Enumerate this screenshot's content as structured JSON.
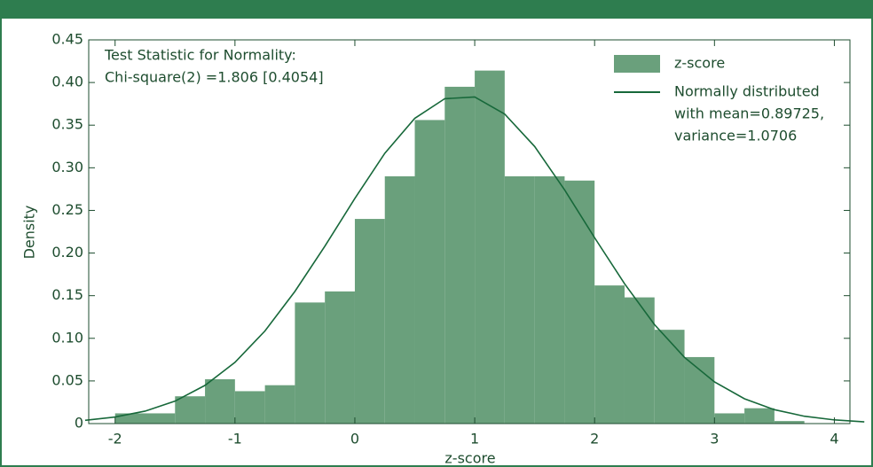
{
  "chart_data": {
    "type": "histogram",
    "annotation": [
      "Test Statistic for Normality:",
      "Chi-square(2) =1.806 [0.4054]"
    ],
    "xlabel": "z-score",
    "ylabel": "Density",
    "xlim": [
      -2.22,
      4.13
    ],
    "ylim": [
      0,
      0.45
    ],
    "xticks": [
      -2,
      -1,
      0,
      1,
      2,
      3,
      4
    ],
    "yticks": [
      0,
      {
        "value": 0.05,
        "label": "0.05"
      },
      {
        "value": 0.1,
        "label": "0.10"
      },
      {
        "value": 0.15,
        "label": "0.15"
      },
      {
        "value": 0.2,
        "label": "0.20"
      },
      {
        "value": 0.25,
        "label": "0.25"
      },
      {
        "value": 0.3,
        "label": "0.30"
      },
      {
        "value": 0.35,
        "label": "0.35"
      },
      {
        "value": 0.4,
        "label": "0.40"
      },
      {
        "value": 0.45,
        "label": "0.45"
      }
    ],
    "bins": [
      -2,
      -1.75,
      -1.5,
      -1.25,
      -1,
      -0.75,
      -0.5,
      -0.25,
      0,
      0.25,
      0.5,
      0.75,
      1,
      1.25,
      1.5,
      1.75,
      2,
      2.25,
      2.5,
      2.75,
      3,
      3.25,
      3.5,
      3.75
    ],
    "series": [
      {
        "name": "z-score",
        "color": "#6aa07c",
        "values": [
          0.012,
          0.012,
          0.032,
          0.052,
          0.038,
          0.045,
          0.142,
          0.155,
          0.24,
          0.29,
          0.356,
          0.395,
          0.414,
          0.29,
          0.29,
          0.285,
          0.162,
          0.148,
          0.11,
          0.078,
          0.012,
          0.018,
          0.003
        ]
      },
      {
        "name": [
          "Normally distributed",
          "with mean=0.89725,",
          "variance=1.0706"
        ],
        "color": "#17683a",
        "x": [
          -2.25,
          -2,
          -1.75,
          -1.5,
          -1.25,
          -1,
          -0.75,
          -0.5,
          -0.25,
          0,
          0.25,
          0.5,
          0.75,
          1,
          1.25,
          1.5,
          1.75,
          2,
          2.25,
          2.5,
          2.75,
          3,
          3.25,
          3.5,
          3.75,
          4,
          4.25
        ],
        "values": [
          0.0038,
          0.0077,
          0.0146,
          0.0263,
          0.0448,
          0.0718,
          0.1086,
          0.155,
          0.208,
          0.264,
          0.317,
          0.358,
          0.381,
          0.383,
          0.363,
          0.325,
          0.274,
          0.218,
          0.164,
          0.116,
          0.0776,
          0.0489,
          0.0291,
          0.0163,
          0.0086,
          0.0043,
          0.002
        ]
      }
    ]
  }
}
